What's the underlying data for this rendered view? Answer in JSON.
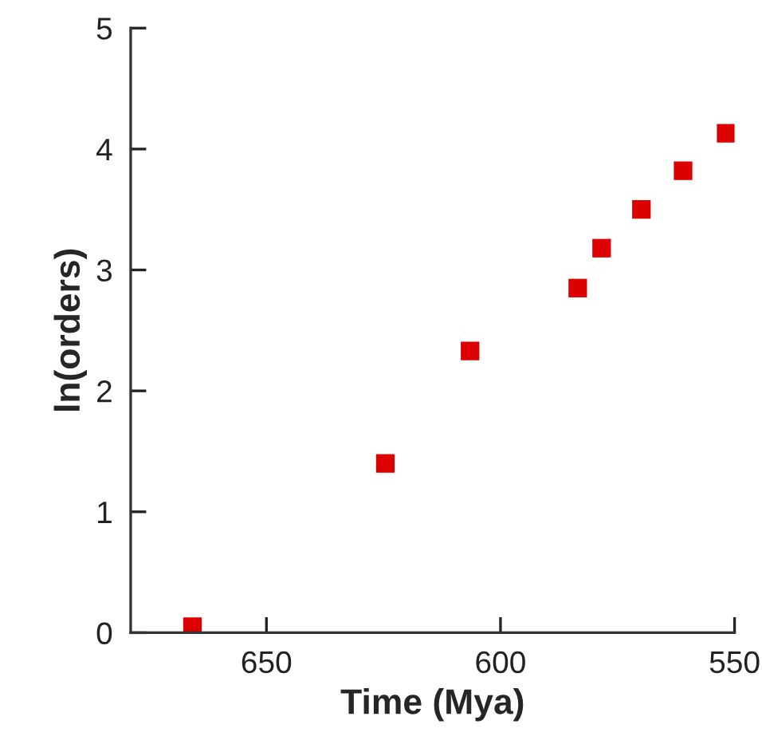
{
  "chart_data": {
    "type": "scatter",
    "xlabel": "Time (Mya)",
    "ylabel": "ln(orders)",
    "x": [
      665.8,
      624.6,
      606.5,
      583.5,
      578.4,
      569.9,
      561.0,
      551.8
    ],
    "series": [
      {
        "color": "#dd0000",
        "values": [
          0.05,
          1.4,
          2.33,
          2.85,
          3.18,
          3.5,
          3.82,
          4.13
        ]
      }
    ],
    "xlim": [
      679,
      550
    ],
    "xticks": [
      650,
      600,
      550
    ],
    "ylim": [
      0,
      5
    ],
    "yticks": [
      0,
      1,
      2,
      3,
      4,
      5
    ],
    "marker": "square",
    "grid": false,
    "legend": false
  }
}
